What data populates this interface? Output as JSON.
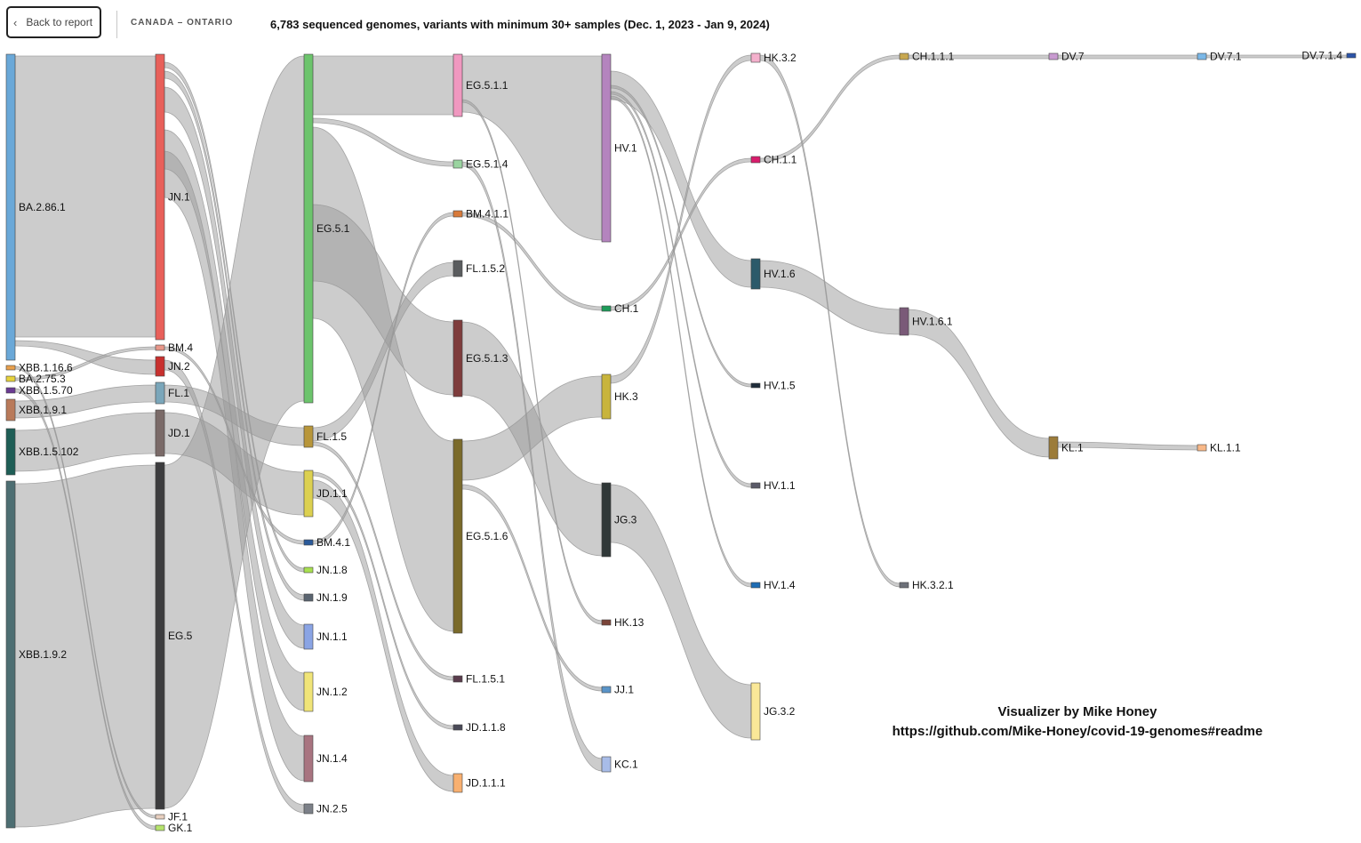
{
  "header": {
    "back_label": "Back to report",
    "back_icon": "chevron-left-icon",
    "region": "CANADA – ONTARIO",
    "title": "6,783 sequenced genomes, variants with minimum 30+ samples (Dec. 1, 2023 - Jan 9, 2024)"
  },
  "credits": {
    "name": "Visualizer by Mike Honey",
    "url": "https://github.com/Mike-Honey/covid-19-genomes#readme"
  },
  "link_color": "#999999",
  "nodes": [
    {
      "id": "BA.2.86.1",
      "color": "#6aa8d8"
    },
    {
      "id": "XBB.1.16.6",
      "color": "#e8a04c"
    },
    {
      "id": "BA.2.75.3",
      "color": "#e6d23c"
    },
    {
      "id": "XBB.1.5.70",
      "color": "#6a3a92"
    },
    {
      "id": "XBB.1.9.1",
      "color": "#b97a5a"
    },
    {
      "id": "XBB.1.5.102",
      "color": "#1e5e56"
    },
    {
      "id": "XBB.1.9.2",
      "color": "#4d6e72"
    },
    {
      "id": "JN.1",
      "color": "#e8605a"
    },
    {
      "id": "BM.4",
      "color": "#e8978a"
    },
    {
      "id": "JN.2",
      "color": "#c8302e"
    },
    {
      "id": "FL.1",
      "color": "#7aa6ba"
    },
    {
      "id": "JD.1",
      "color": "#7a6a68"
    },
    {
      "id": "EG.5",
      "color": "#3c3c3e"
    },
    {
      "id": "JF.1",
      "color": "#e8d0c0"
    },
    {
      "id": "GK.1",
      "color": "#b6e46c"
    },
    {
      "id": "EG.5.1",
      "color": "#6cc46c"
    },
    {
      "id": "FL.1.5",
      "color": "#b8963a"
    },
    {
      "id": "JD.1.1",
      "color": "#dcd050"
    },
    {
      "id": "BM.4.1",
      "color": "#2a5a9a"
    },
    {
      "id": "JN.1.8",
      "color": "#a8e050"
    },
    {
      "id": "JN.1.9",
      "color": "#5a6470"
    },
    {
      "id": "JN.1.1",
      "color": "#8aa4e4"
    },
    {
      "id": "JN.1.2",
      "color": "#f0e478"
    },
    {
      "id": "JN.1.4",
      "color": "#a87480"
    },
    {
      "id": "JN.2.5",
      "color": "#7c8088"
    },
    {
      "id": "EG.5.1.1",
      "color": "#f098c0"
    },
    {
      "id": "EG.5.1.4",
      "color": "#9ad4a0"
    },
    {
      "id": "BM.4.1.1",
      "color": "#d87a3a"
    },
    {
      "id": "FL.1.5.2",
      "color": "#5a5c5e"
    },
    {
      "id": "EG.5.1.3",
      "color": "#7e3c3c"
    },
    {
      "id": "EG.5.1.6",
      "color": "#7a6a2a"
    },
    {
      "id": "FL.1.5.1",
      "color": "#5a3c4c"
    },
    {
      "id": "JD.1.1.8",
      "color": "#4a4a58"
    },
    {
      "id": "JD.1.1.1",
      "color": "#f8b070"
    },
    {
      "id": "HV.1",
      "color": "#b484be"
    },
    {
      "id": "CH.1",
      "color": "#1e9c5a"
    },
    {
      "id": "HK.3",
      "color": "#c8b43c"
    },
    {
      "id": "JG.3",
      "color": "#303838"
    },
    {
      "id": "HK.13",
      "color": "#7a4438"
    },
    {
      "id": "JJ.1",
      "color": "#5a94c8"
    },
    {
      "id": "KC.1",
      "color": "#a8bce8"
    },
    {
      "id": "HK.3.2",
      "color": "#f4b0cc"
    },
    {
      "id": "CH.1.1",
      "color": "#d81c6c"
    },
    {
      "id": "HV.1.6",
      "color": "#2c5a6a"
    },
    {
      "id": "HV.1.5",
      "color": "#1e2c3a"
    },
    {
      "id": "HV.1.1",
      "color": "#5a5a68"
    },
    {
      "id": "HV.1.4",
      "color": "#1e6cb4"
    },
    {
      "id": "JG.3.2",
      "color": "#fae898"
    },
    {
      "id": "CH.1.1.1",
      "color": "#c8a850"
    },
    {
      "id": "HV.1.6.1",
      "color": "#7a5a78"
    },
    {
      "id": "HK.3.2.1",
      "color": "#6c7078"
    },
    {
      "id": "DV.7",
      "color": "#c89ad0"
    },
    {
      "id": "KL.1",
      "color": "#9c7c3a"
    },
    {
      "id": "DV.7.1",
      "color": "#7ab8e8"
    },
    {
      "id": "KL.1.1",
      "color": "#f8b888"
    },
    {
      "id": "DV.7.1.4",
      "color": "#2c54a8"
    }
  ],
  "links": [
    {
      "source": "BA.2.86.1",
      "target": "JN.1"
    },
    {
      "source": "BA.2.86.1",
      "target": "JN.2"
    },
    {
      "source": "XBB.1.16.6",
      "target": "JF.1"
    },
    {
      "source": "XBB.1.5.70",
      "target": "GK.1"
    },
    {
      "source": "XBB.1.9.1",
      "target": "FL.1"
    },
    {
      "source": "XBB.1.5.102",
      "target": "JD.1"
    },
    {
      "source": "XBB.1.9.2",
      "target": "EG.5"
    },
    {
      "source": "BA.2.75.3",
      "target": "BM.4"
    },
    {
      "source": "JN.1",
      "target": "JN.1.8"
    },
    {
      "source": "JN.1",
      "target": "JN.1.9"
    },
    {
      "source": "JN.1",
      "target": "JN.1.1"
    },
    {
      "source": "JN.1",
      "target": "JN.1.2"
    },
    {
      "source": "JN.1",
      "target": "JN.1.4"
    },
    {
      "source": "JN.2",
      "target": "JN.2.5"
    },
    {
      "source": "BM.4",
      "target": "BM.4.1"
    },
    {
      "source": "FL.1",
      "target": "FL.1.5"
    },
    {
      "source": "JD.1",
      "target": "JD.1.1"
    },
    {
      "source": "EG.5",
      "target": "EG.5.1"
    },
    {
      "source": "EG.5.1",
      "target": "EG.5.1.1"
    },
    {
      "source": "EG.5.1",
      "target": "EG.5.1.4"
    },
    {
      "source": "EG.5.1",
      "target": "EG.5.1.6"
    },
    {
      "source": "EG.5.1",
      "target": "EG.5.1.3"
    },
    {
      "source": "FL.1.5",
      "target": "FL.1.5.2"
    },
    {
      "source": "FL.1.5",
      "target": "FL.1.5.1"
    },
    {
      "source": "JD.1.1",
      "target": "JD.1.1.8"
    },
    {
      "source": "JD.1.1",
      "target": "JD.1.1.1"
    },
    {
      "source": "BM.4.1",
      "target": "BM.4.1.1"
    },
    {
      "source": "EG.5.1.1",
      "target": "HV.1"
    },
    {
      "source": "EG.5.1.1",
      "target": "HK.13"
    },
    {
      "source": "EG.5.1.3",
      "target": "JG.3"
    },
    {
      "source": "EG.5.1.4",
      "target": "KC.1"
    },
    {
      "source": "EG.5.1.6",
      "target": "HK.3"
    },
    {
      "source": "EG.5.1.6",
      "target": "JJ.1"
    },
    {
      "source": "BM.4.1.1",
      "target": "CH.1"
    },
    {
      "source": "HV.1",
      "target": "HV.1.6"
    },
    {
      "source": "HV.1",
      "target": "HV.1.5"
    },
    {
      "source": "HV.1",
      "target": "HV.1.1"
    },
    {
      "source": "HV.1",
      "target": "HV.1.4"
    },
    {
      "source": "HK.3",
      "target": "HK.3.2"
    },
    {
      "source": "CH.1",
      "target": "CH.1.1"
    },
    {
      "source": "JG.3",
      "target": "JG.3.2"
    },
    {
      "source": "HK.3.2",
      "target": "HK.3.2.1"
    },
    {
      "source": "HV.1.6",
      "target": "HV.1.6.1"
    },
    {
      "source": "CH.1.1",
      "target": "CH.1.1.1"
    },
    {
      "source": "CH.1.1.1",
      "target": "DV.7"
    },
    {
      "source": "DV.7",
      "target": "DV.7.1"
    },
    {
      "source": "DV.7.1",
      "target": "DV.7.1.4"
    },
    {
      "source": "HV.1.6.1",
      "target": "KL.1"
    },
    {
      "source": "KL.1",
      "target": "KL.1.1"
    }
  ]
}
